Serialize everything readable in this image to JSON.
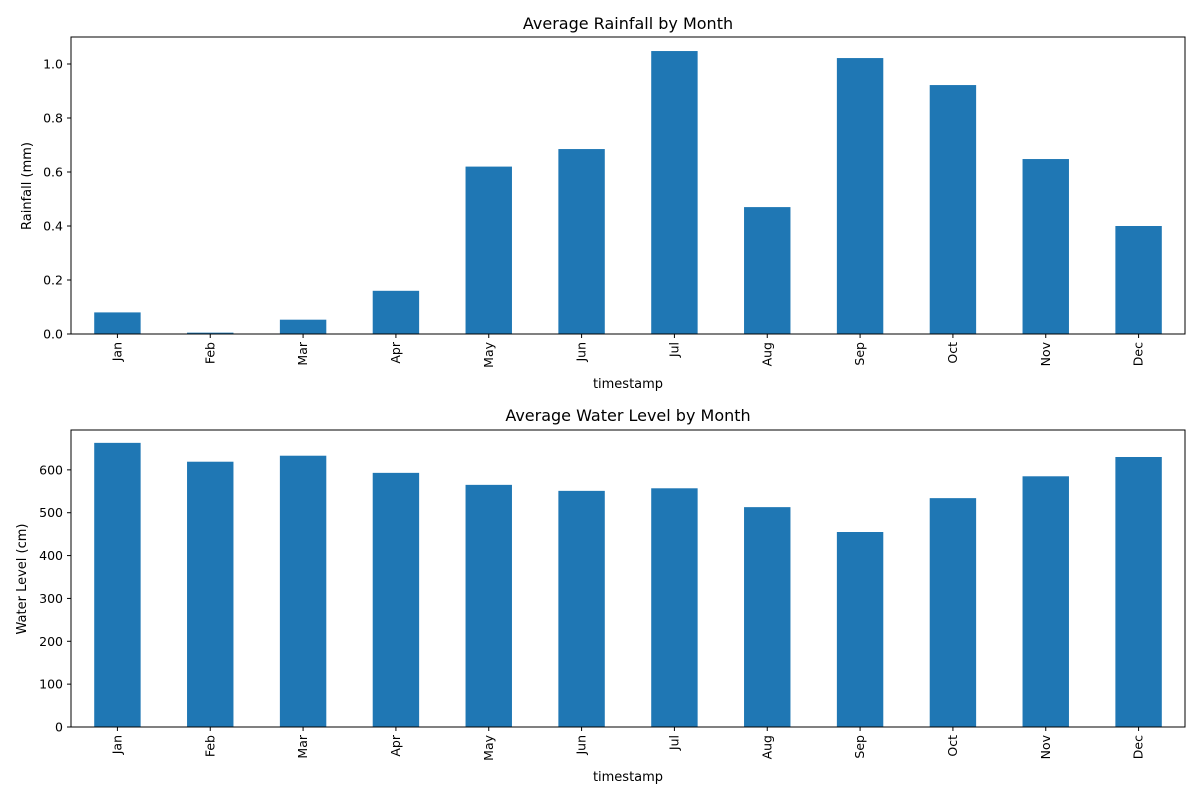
{
  "figure": {
    "background": "#ffffff"
  },
  "chart_data": [
    {
      "type": "bar",
      "title": "Average Rainfall by Month",
      "xlabel": "timestamp",
      "ylabel": "Rainfall (mm)",
      "categories": [
        "Jan",
        "Feb",
        "Mar",
        "Apr",
        "May",
        "Jun",
        "Jul",
        "Aug",
        "Sep",
        "Oct",
        "Nov",
        "Dec"
      ],
      "values": [
        0.08,
        0.005,
        0.053,
        0.16,
        0.62,
        0.685,
        1.048,
        0.47,
        1.022,
        0.922,
        0.648,
        0.4
      ],
      "ylim": [
        0,
        1.1
      ],
      "yticks": [
        0.0,
        0.2,
        0.4,
        0.6,
        0.8,
        1.0
      ],
      "ytick_labels": [
        "0.0",
        "0.2",
        "0.4",
        "0.6",
        "0.8",
        "1.0"
      ],
      "bar_color": "#1f77b4",
      "grid": false,
      "legend": false
    },
    {
      "type": "bar",
      "title": "Average Water Level by Month",
      "xlabel": "timestamp",
      "ylabel": "Water Level (cm)",
      "categories": [
        "Jan",
        "Feb",
        "Mar",
        "Apr",
        "May",
        "Jun",
        "Jul",
        "Aug",
        "Sep",
        "Oct",
        "Nov",
        "Dec"
      ],
      "values": [
        663,
        619,
        633,
        593,
        565,
        551,
        557,
        513,
        455,
        534,
        585,
        630
      ],
      "ylim": [
        0,
        693
      ],
      "yticks": [
        0,
        100,
        200,
        300,
        400,
        500,
        600
      ],
      "ytick_labels": [
        "0",
        "100",
        "200",
        "300",
        "400",
        "500",
        "600"
      ],
      "bar_color": "#1f77b4",
      "grid": false,
      "legend": false
    }
  ]
}
